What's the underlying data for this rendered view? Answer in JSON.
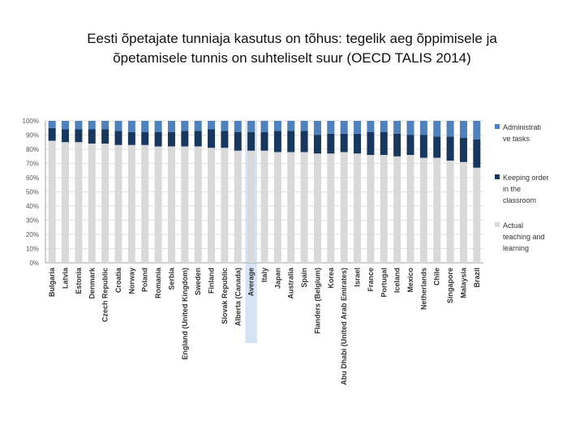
{
  "slide": {
    "title_line1": "Eesti õpetajate tunniaja kasutus on tõhus: tegelik aeg õppimisele ja",
    "title_line2": "õpetamisele tunnis on suhteliselt suur (OECD TALIS 2014)"
  },
  "chart_data": {
    "type": "bar",
    "stacked": true,
    "percent_stacked": true,
    "highlight_category": "Average",
    "ylim": [
      0,
      100
    ],
    "yticks": [
      "0%",
      "10%",
      "20%",
      "30%",
      "40%",
      "50%",
      "60%",
      "70%",
      "80%",
      "90%",
      "100%"
    ],
    "grid": true,
    "legend_position": "right",
    "categories": [
      "Bulgaria",
      "Latvia",
      "Estonia",
      "Denmark",
      "Czech Republic",
      "Croatia",
      "Norway",
      "Poland",
      "Romania",
      "Serbia",
      "England (United Kingdom)",
      "Sweden",
      "Finland",
      "Slovak Republic",
      "Alberta (Canada)",
      "Average",
      "Italy",
      "Japan",
      "Australia",
      "Spain",
      "Flanders (Belgium)",
      "Korea",
      "Abu Dhabi (United Arab Emirates)",
      "Israel",
      "France",
      "Portugal",
      "Iceland",
      "Mexico",
      "Netherlands",
      "Chile",
      "Singapore",
      "Malaysia",
      "Brazil"
    ],
    "series": [
      {
        "name": "Actual teaching and learning",
        "color": "#d9d9d9",
        "values": [
          86,
          85,
          85,
          84,
          84,
          83,
          83,
          83,
          82,
          82,
          82,
          82,
          81,
          81,
          79,
          79,
          79,
          78,
          78,
          78,
          77,
          77,
          78,
          77,
          76,
          76,
          75,
          76,
          74,
          74,
          72,
          71,
          67
        ]
      },
      {
        "name": "Keeping order in the classroom",
        "color": "#17375e",
        "values": [
          9,
          9,
          9,
          10,
          10,
          10,
          9,
          9,
          10,
          10,
          11,
          11,
          13,
          12,
          13,
          13,
          13,
          15,
          15,
          15,
          13,
          14,
          13,
          14,
          16,
          16,
          16,
          14,
          16,
          15,
          17,
          17,
          20
        ]
      },
      {
        "name": "Administrative tasks",
        "color": "#4f81bd",
        "values": [
          5,
          6,
          6,
          6,
          6,
          7,
          8,
          8,
          8,
          8,
          7,
          7,
          6,
          7,
          8,
          8,
          8,
          7,
          7,
          7,
          10,
          9,
          9,
          9,
          8,
          8,
          9,
          10,
          10,
          11,
          11,
          12,
          13
        ]
      }
    ],
    "legend": [
      {
        "label": "Administrati ve tasks",
        "series": 2,
        "color": "#4f81bd"
      },
      {
        "label": "Keeping order in the classroom",
        "series": 1,
        "color": "#17375e"
      },
      {
        "label": "Actual teaching and learning",
        "series": 0,
        "color": "#d9d9d9"
      }
    ]
  }
}
